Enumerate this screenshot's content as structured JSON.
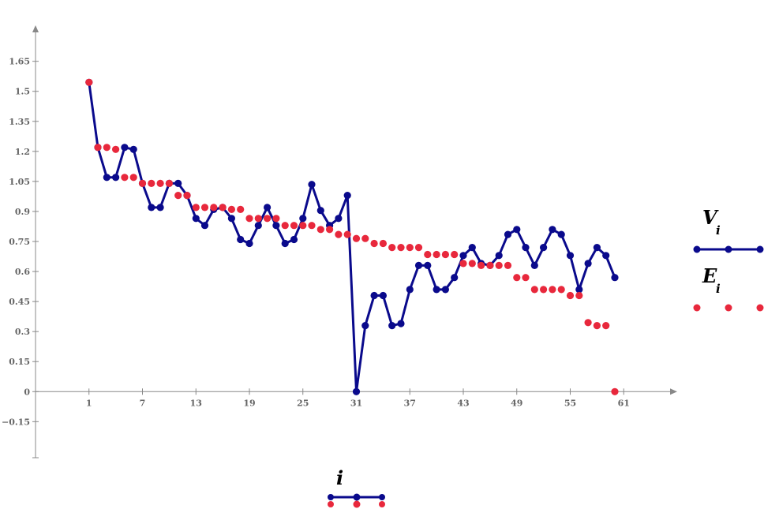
{
  "chart_data": {
    "type": "line",
    "x_ticks": [
      "1",
      "7",
      "13",
      "19",
      "25",
      "31",
      "37",
      "43",
      "49",
      "55",
      "61"
    ],
    "y_ticks": [
      "-0.15",
      "0",
      "0.15",
      "0.3",
      "0.45",
      "0.6",
      "0.75",
      "0.9",
      "1.05",
      "1.2",
      "1.35",
      "1.5",
      "1.65"
    ],
    "xlim": [
      -5,
      67
    ],
    "ylim": [
      -0.33,
      1.83
    ],
    "xlabel": {
      "main": "i",
      "sub": ""
    },
    "series": [
      {
        "name": "V",
        "subscript": "i",
        "style": "line-markers",
        "color": "#0a0a8c",
        "x": [
          1,
          2,
          3,
          4,
          5,
          6,
          7,
          8,
          9,
          10,
          11,
          12,
          13,
          14,
          15,
          16,
          17,
          18,
          19,
          20,
          21,
          22,
          23,
          24,
          25,
          26,
          27,
          28,
          29,
          30,
          31,
          32,
          33,
          34,
          35,
          36,
          37,
          38,
          39,
          40,
          41,
          42,
          43,
          44,
          45,
          46,
          47,
          48,
          49,
          50,
          51,
          52,
          53,
          54,
          55,
          56,
          57,
          58,
          59,
          60
        ],
        "values": [
          1.545,
          1.22,
          1.07,
          1.07,
          1.22,
          1.21,
          1.04,
          0.92,
          0.92,
          1.04,
          1.04,
          0.98,
          0.865,
          0.83,
          0.91,
          0.92,
          0.865,
          0.76,
          0.74,
          0.83,
          0.92,
          0.83,
          0.74,
          0.76,
          0.865,
          1.035,
          0.905,
          0.83,
          0.865,
          0.98,
          0.0,
          0.33,
          0.48,
          0.48,
          0.33,
          0.34,
          0.51,
          0.63,
          0.63,
          0.51,
          0.51,
          0.57,
          0.68,
          0.72,
          0.64,
          0.63,
          0.68,
          0.785,
          0.81,
          0.72,
          0.63,
          0.72,
          0.81,
          0.785,
          0.68,
          0.51,
          0.64,
          0.72,
          0.68,
          0.57
        ]
      },
      {
        "name": "E",
        "subscript": "i",
        "style": "markers",
        "color": "#e8283c",
        "x": [
          1,
          2,
          3,
          4,
          5,
          6,
          7,
          8,
          9,
          10,
          11,
          12,
          13,
          14,
          15,
          16,
          17,
          18,
          19,
          20,
          21,
          22,
          23,
          24,
          25,
          26,
          27,
          28,
          29,
          30,
          31,
          32,
          33,
          34,
          35,
          36,
          37,
          38,
          39,
          40,
          41,
          42,
          43,
          44,
          45,
          46,
          47,
          48,
          49,
          50,
          51,
          52,
          53,
          54,
          55,
          56,
          57,
          58,
          59,
          60
        ],
        "values": [
          1.545,
          1.22,
          1.22,
          1.21,
          1.07,
          1.07,
          1.04,
          1.04,
          1.04,
          1.04,
          0.98,
          0.98,
          0.92,
          0.92,
          0.92,
          0.92,
          0.91,
          0.91,
          0.865,
          0.865,
          0.865,
          0.865,
          0.83,
          0.83,
          0.83,
          0.83,
          0.81,
          0.81,
          0.785,
          0.785,
          0.765,
          0.765,
          0.74,
          0.74,
          0.72,
          0.72,
          0.72,
          0.72,
          0.685,
          0.685,
          0.685,
          0.685,
          0.64,
          0.64,
          0.63,
          0.63,
          0.63,
          0.63,
          0.57,
          0.57,
          0.51,
          0.51,
          0.51,
          0.51,
          0.48,
          0.48,
          0.345,
          0.33,
          0.33,
          0.0
        ]
      }
    ]
  }
}
